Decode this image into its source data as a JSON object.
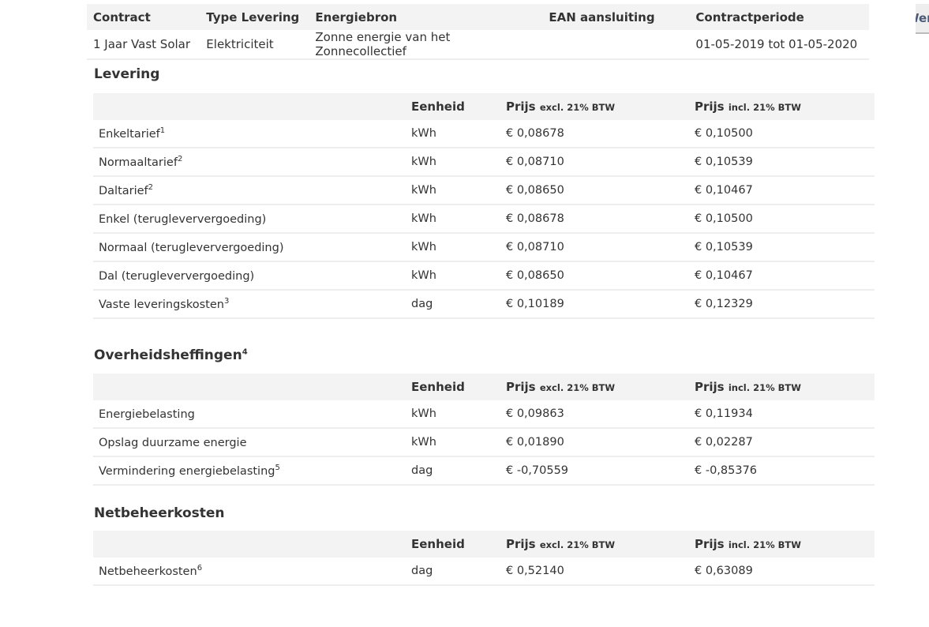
{
  "contract": {
    "headers": [
      "Contract",
      "Type Levering",
      "Energiebron",
      "EAN aansluiting",
      "Contractperiode"
    ],
    "row": [
      "1 Jaar Vast Solar",
      "Elektriciteit",
      "Zonne energie van het Zonnecollectief",
      "",
      "01-05-2019 tot 01-05-2020"
    ]
  },
  "side_button": "Werking",
  "columns": {
    "unit": "Eenheid",
    "price": "Prijs",
    "excl": "excl. 21% BTW",
    "incl": "incl. 21% BTW"
  },
  "sections": [
    {
      "title": "Levering",
      "sup": "",
      "rows": [
        {
          "label": "Enkeltarief",
          "sup": "1",
          "unit": "kWh",
          "excl": "€ 0,08678",
          "incl": "€ 0,10500"
        },
        {
          "label": "Normaaltarief",
          "sup": "2",
          "unit": "kWh",
          "excl": "€ 0,08710",
          "incl": "€ 0,10539"
        },
        {
          "label": "Daltarief",
          "sup": "2",
          "unit": "kWh",
          "excl": "€ 0,08650",
          "incl": "€ 0,10467"
        },
        {
          "label": "Enkel (terugleververgoeding)",
          "sup": "",
          "unit": "kWh",
          "excl": "€ 0,08678",
          "incl": "€ 0,10500"
        },
        {
          "label": "Normaal (terugleververgoeding)",
          "sup": "",
          "unit": "kWh",
          "excl": "€ 0,08710",
          "incl": "€ 0,10539"
        },
        {
          "label": "Dal (terugleververgoeding)",
          "sup": "",
          "unit": "kWh",
          "excl": "€ 0,08650",
          "incl": "€ 0,10467"
        },
        {
          "label": "Vaste leveringskosten",
          "sup": "3",
          "unit": "dag",
          "excl": "€ 0,10189",
          "incl": "€ 0,12329"
        }
      ]
    },
    {
      "title": "Overheidsheffingen",
      "sup": "4",
      "rows": [
        {
          "label": "Energiebelasting",
          "sup": "",
          "unit": "kWh",
          "excl": "€ 0,09863",
          "incl": "€ 0,11934"
        },
        {
          "label": "Opslag duurzame energie",
          "sup": "",
          "unit": "kWh",
          "excl": "€ 0,01890",
          "incl": "€ 0,02287"
        },
        {
          "label": "Vermindering energiebelasting",
          "sup": "5",
          "unit": "dag",
          "excl": "€ -0,70559",
          "incl": "€ -0,85376"
        }
      ]
    },
    {
      "title": "Netbeheerkosten",
      "sup": "",
      "rows": [
        {
          "label": "Netbeheerkosten",
          "sup": "6",
          "unit": "dag",
          "excl": "€ 0,52140",
          "incl": "€ 0,63089"
        }
      ]
    }
  ]
}
